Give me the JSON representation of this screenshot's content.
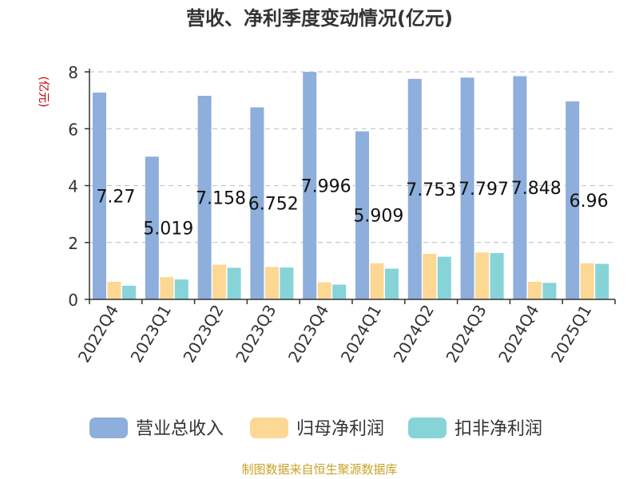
{
  "chart_data": {
    "type": "bar",
    "title": "营收、净利季度变动情况(亿元)",
    "ylabel": "(亿元)",
    "ylim": [
      0,
      8
    ],
    "yticks": [
      0,
      2,
      4,
      6,
      8
    ],
    "grid": true,
    "legend_position": "bottom",
    "categories": [
      "2022Q4",
      "2023Q1",
      "2023Q2",
      "2023Q3",
      "2023Q4",
      "2024Q1",
      "2024Q2",
      "2024Q3",
      "2024Q4",
      "2025Q1"
    ],
    "series": [
      {
        "name": "营业总收入",
        "color": "#8eaedb",
        "values": [
          7.27,
          5.019,
          7.158,
          6.752,
          7.996,
          5.909,
          7.753,
          7.797,
          7.848,
          6.96
        ],
        "labels": [
          "7.27",
          "5.019",
          "7.158",
          "6.752",
          "7.996",
          "5.909",
          "7.753",
          "7.797",
          "7.848",
          "6.96"
        ]
      },
      {
        "name": "归母净利润",
        "color": "#fdd794",
        "values": [
          0.62,
          0.78,
          1.22,
          1.14,
          0.6,
          1.27,
          1.6,
          1.65,
          0.62,
          1.27
        ]
      },
      {
        "name": "扣非净利润",
        "color": "#86d4d8",
        "values": [
          0.48,
          0.7,
          1.11,
          1.12,
          0.52,
          1.08,
          1.5,
          1.63,
          0.58,
          1.25
        ]
      }
    ]
  },
  "footer": {
    "source": "制图数据来自恒生聚源数据库"
  }
}
